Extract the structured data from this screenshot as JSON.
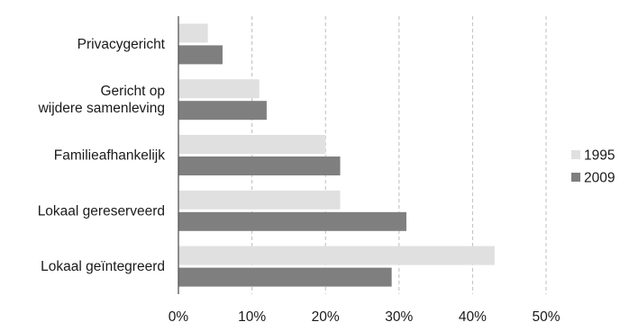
{
  "chart_data": {
    "type": "bar",
    "orientation": "horizontal",
    "categories": [
      [
        "Privacygericht"
      ],
      [
        "Gericht op",
        "wijdere samenleving"
      ],
      [
        "Familieafhankelijk"
      ],
      [
        "Lokaal gereserveerd"
      ],
      [
        "Lokaal geïntegreerd"
      ]
    ],
    "series": [
      {
        "name": "1995",
        "values": [
          4,
          11,
          20,
          22,
          43
        ],
        "color": "#e0e0e0"
      },
      {
        "name": "2009",
        "values": [
          6,
          12,
          22,
          31,
          29
        ],
        "color": "#7f7f7f"
      }
    ],
    "x_ticks": [
      "0%",
      "10%",
      "20%",
      "30%",
      "40%",
      "50%"
    ],
    "xlim": [
      0,
      50
    ],
    "grid": "vertical-dashed",
    "legend_position": "right",
    "title": "",
    "xlabel": "",
    "ylabel": ""
  }
}
